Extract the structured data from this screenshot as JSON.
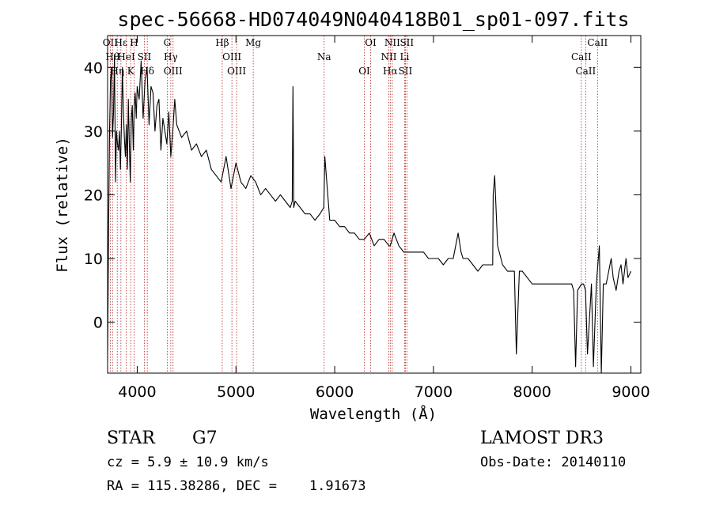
{
  "chart_data": {
    "type": "line",
    "title": "spec-56668-HD074049N040418B01_sp01-097.fits",
    "xlabel": "Wavelength (Å)",
    "ylabel": "Flux (relative)",
    "xlim": [
      3700,
      9100
    ],
    "ylim": [
      -8,
      45
    ],
    "xticks": [
      4000,
      5000,
      6000,
      7000,
      8000,
      9000
    ],
    "yticks": [
      0,
      10,
      20,
      30,
      40
    ],
    "grid": false,
    "line_color": "#000000",
    "marker_color": "#b22222",
    "spectrum": {
      "x": [
        3700,
        3710,
        3720,
        3730,
        3740,
        3750,
        3760,
        3770,
        3780,
        3790,
        3800,
        3810,
        3820,
        3830,
        3840,
        3850,
        3860,
        3870,
        3880,
        3890,
        3900,
        3910,
        3920,
        3930,
        3940,
        3950,
        3960,
        3970,
        3980,
        3990,
        4000,
        4020,
        4040,
        4060,
        4080,
        4100,
        4120,
        4140,
        4160,
        4180,
        4200,
        4220,
        4240,
        4260,
        4280,
        4300,
        4320,
        4340,
        4360,
        4380,
        4400,
        4450,
        4500,
        4550,
        4600,
        4650,
        4700,
        4750,
        4800,
        4850,
        4900,
        4950,
        5000,
        5050,
        5100,
        5150,
        5200,
        5250,
        5300,
        5350,
        5400,
        5450,
        5500,
        5550,
        5570,
        5577,
        5585,
        5600,
        5650,
        5700,
        5750,
        5800,
        5850,
        5890,
        5900,
        5950,
        6000,
        6050,
        6100,
        6150,
        6200,
        6250,
        6300,
        6350,
        6400,
        6450,
        6500,
        6550,
        6563,
        6600,
        6650,
        6700,
        6750,
        6800,
        6850,
        6900,
        6950,
        7000,
        7050,
        7100,
        7150,
        7200,
        7250,
        7280,
        7300,
        7350,
        7400,
        7450,
        7500,
        7550,
        7600,
        7605,
        7620,
        7650,
        7700,
        7750,
        7800,
        7820,
        7840,
        7870,
        7900,
        7950,
        8000,
        8050,
        8100,
        8150,
        8200,
        8250,
        8300,
        8350,
        8400,
        8420,
        8440,
        8460,
        8500,
        8520,
        8540,
        8560,
        8600,
        8620,
        8650,
        8680,
        8700,
        8720,
        8750,
        8800,
        8820,
        8850,
        8880,
        8900,
        8920,
        8950,
        8970,
        9000
      ],
      "y": [
        -6,
        14,
        30,
        38,
        40,
        29,
        33,
        42,
        22,
        30,
        28,
        27,
        30,
        24,
        31,
        40,
        33,
        29,
        26,
        31,
        24,
        35,
        28,
        22,
        32,
        34,
        27,
        34,
        36,
        32,
        37,
        35,
        41,
        32,
        38,
        40,
        31,
        37,
        36,
        30,
        34,
        35,
        27,
        32,
        30,
        28,
        33,
        26,
        30,
        35,
        31,
        29,
        30,
        27,
        28,
        26,
        27,
        24,
        23,
        22,
        26,
        21,
        25,
        22,
        21,
        23,
        22,
        20,
        21,
        20,
        19,
        20,
        19,
        18,
        19,
        37,
        18,
        19,
        18,
        17,
        17,
        16,
        17,
        18,
        26,
        16,
        16,
        15,
        15,
        14,
        14,
        13,
        13,
        14,
        12,
        13,
        13,
        12,
        12,
        14,
        12,
        11,
        11,
        11,
        11,
        11,
        10,
        10,
        10,
        9,
        10,
        10,
        14,
        11,
        10,
        10,
        9,
        8,
        9,
        9,
        9,
        20,
        23,
        12,
        9,
        8,
        8,
        8,
        -5,
        8,
        8,
        7,
        6,
        6,
        6,
        6,
        6,
        6,
        6,
        6,
        6,
        5,
        -7,
        5,
        6,
        6,
        5,
        -5,
        6,
        -7,
        6,
        12,
        -8,
        6,
        6,
        10,
        7,
        5,
        8,
        9,
        6,
        10,
        7,
        8
      ]
    },
    "markers": [
      {
        "x": 3727,
        "label": "OII"
      },
      {
        "x": 3750,
        "label": "Hθ"
      },
      {
        "x": 3798,
        "label": "Hη"
      },
      {
        "x": 3835,
        "label": "Hε"
      },
      {
        "x": 3889,
        "label": "HeI"
      },
      {
        "x": 3934,
        "label": "K"
      },
      {
        "x": 3968,
        "label": "H"
      },
      {
        "x": 4072,
        "label": "SII"
      },
      {
        "x": 4102,
        "label": "Hδ"
      },
      {
        "x": 4304,
        "label": "G"
      },
      {
        "x": 4340,
        "label": "Hγ"
      },
      {
        "x": 4363,
        "label": "OIII"
      },
      {
        "x": 4861,
        "label": "Hβ"
      },
      {
        "x": 4959,
        "label": "OIII"
      },
      {
        "x": 5007,
        "label": "OIII"
      },
      {
        "x": 5175,
        "label": "Mg"
      },
      {
        "x": 5893,
        "label": "Na"
      },
      {
        "x": 6300,
        "label": "OI"
      },
      {
        "x": 6364,
        "label": "OI"
      },
      {
        "x": 6548,
        "label": "NII"
      },
      {
        "x": 6563,
        "label": "Hα"
      },
      {
        "x": 6583,
        "label": "NII"
      },
      {
        "x": 6708,
        "label": "Li"
      },
      {
        "x": 6716,
        "label": "SII"
      },
      {
        "x": 6731,
        "label": "SII"
      },
      {
        "x": 8498,
        "label": "CaII"
      },
      {
        "x": 8542,
        "label": "CaII"
      },
      {
        "x": 8662,
        "label": "CaII"
      }
    ]
  },
  "info": {
    "object_class": "STAR",
    "subclass": "G7",
    "survey": "LAMOST DR3",
    "redshift": "cz = 5.9 ± 10.9 km/s",
    "obs_date": "Obs-Date: 20140110",
    "coords": "RA = 115.38286, DEC =    1.91673"
  }
}
